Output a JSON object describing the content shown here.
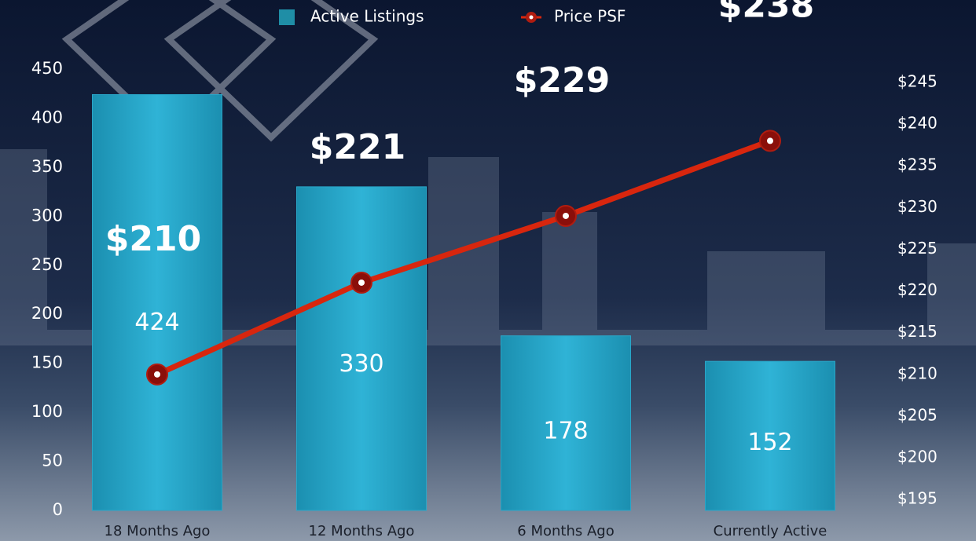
{
  "chart_data": {
    "type": "bar-line",
    "categories": [
      "18 Months Ago",
      "12 Months Ago",
      "6 Months Ago",
      "Currently Active"
    ],
    "series": [
      {
        "name": "Active Listings",
        "type": "bar",
        "color": "#2aa6c8",
        "values": [
          424,
          330,
          178,
          152
        ]
      },
      {
        "name": "Price PSF",
        "type": "line",
        "axis": "y2",
        "color": "#d8260e",
        "values": [
          210,
          221,
          229,
          238
        ],
        "value_labels": [
          "$210",
          "$221",
          "$229",
          "$238"
        ]
      }
    ],
    "ylim": [
      0,
      450
    ],
    "yticks": [
      0,
      50,
      100,
      150,
      200,
      250,
      300,
      350,
      400,
      450
    ],
    "y2lim": [
      193.7,
      246.6
    ],
    "y2ticks": [
      {
        "value": 195,
        "label": "$195"
      },
      {
        "value": 200,
        "label": "$200"
      },
      {
        "value": 205,
        "label": "$205"
      },
      {
        "value": 210,
        "label": "$210"
      },
      {
        "value": 215,
        "label": "$215"
      },
      {
        "value": 220,
        "label": "$220"
      },
      {
        "value": 225,
        "label": "$225"
      },
      {
        "value": 230,
        "label": "$230"
      },
      {
        "value": 235,
        "label": "$235"
      },
      {
        "value": 240,
        "label": "$240"
      },
      {
        "value": 245,
        "label": "$245"
      }
    ],
    "legend": "top"
  }
}
